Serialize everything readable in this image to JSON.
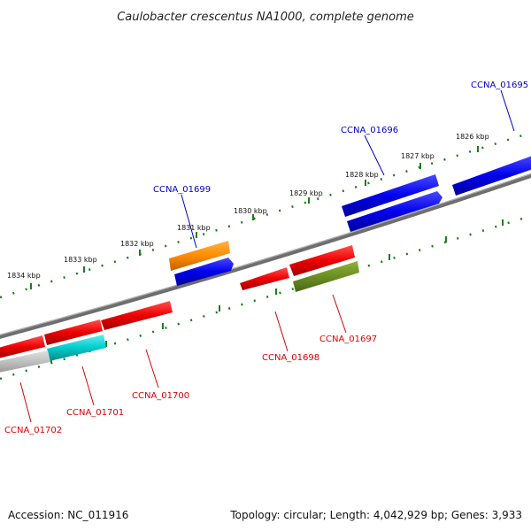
{
  "title": "Caulobacter crescentus NA1000, complete genome",
  "footer": {
    "accession": "Accession: NC_011916",
    "info": "Topology: circular; Length: 4,042,929 bp; Genes: 3,933"
  },
  "kbp_ticks": [
    "1834 kbp",
    "1833 kbp",
    "1832 kbp",
    "1831 kbp",
    "1830 kbp",
    "1829 kbp",
    "1828 kbp",
    "1827 kbp",
    "1826 kbp"
  ],
  "gene_labels_top": [
    "CCNA_01695",
    "CCNA_01696",
    "CCNA_01699"
  ],
  "gene_labels_bottom": [
    "CCNA_01697",
    "CCNA_01698",
    "CCNA_01700",
    "CCNA_01701",
    "CCNA_01702"
  ],
  "colors": {
    "backbone": "#777777",
    "tick": "#1a7f1a",
    "plus_strand": "#0000ee",
    "minus_strand": "#ee0000",
    "orange": "#ff8c00",
    "olive": "#6b8e23",
    "cyan": "#00cccc",
    "grey": "#c0c0c0"
  }
}
